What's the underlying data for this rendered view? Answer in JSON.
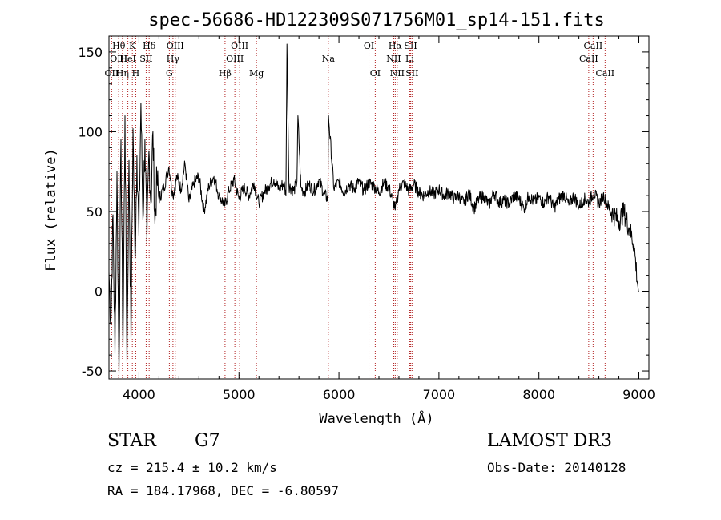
{
  "chart_data": {
    "type": "line",
    "title": "spec-56686-HD122309S071756M01_sp14-151.fits",
    "xlabel": "Wavelength (Å)",
    "ylabel": "Flux (relative)",
    "xlim": [
      3700,
      9100
    ],
    "ylim": [
      -55,
      160
    ],
    "xticks": [
      4000,
      5000,
      6000,
      7000,
      8000,
      9000
    ],
    "yticks": [
      -50,
      0,
      50,
      100,
      150
    ],
    "series": [
      {
        "name": "flux",
        "x": [
          3700,
          3720,
          3740,
          3760,
          3780,
          3800,
          3820,
          3840,
          3860,
          3880,
          3900,
          3920,
          3940,
          3960,
          3980,
          4000,
          4020,
          4040,
          4060,
          4080,
          4100,
          4120,
          4140,
          4160,
          4180,
          4200,
          4250,
          4300,
          4340,
          4380,
          4420,
          4460,
          4500,
          4550,
          4600,
          4650,
          4700,
          4750,
          4800,
          4861,
          4900,
          4950,
          5000,
          5050,
          5100,
          5150,
          5200,
          5250,
          5300,
          5350,
          5400,
          5450,
          5470,
          5480,
          5500,
          5550,
          5580,
          5590,
          5620,
          5650,
          5700,
          5750,
          5800,
          5850,
          5890,
          5896,
          5950,
          6000,
          6050,
          6100,
          6150,
          6200,
          6250,
          6300,
          6350,
          6400,
          6450,
          6500,
          6563,
          6600,
          6650,
          6700,
          6750,
          6800,
          6850,
          6900,
          6950,
          7000,
          7050,
          7100,
          7150,
          7200,
          7250,
          7300,
          7350,
          7400,
          7450,
          7500,
          7550,
          7600,
          7650,
          7700,
          7750,
          7800,
          7850,
          7900,
          7950,
          8000,
          8050,
          8100,
          8150,
          8200,
          8250,
          8300,
          8350,
          8400,
          8450,
          8500,
          8550,
          8600,
          8650,
          8700,
          8750,
          8800,
          8850,
          8900,
          8950,
          8990,
          9000
        ],
        "values": [
          12,
          -20,
          48,
          -40,
          75,
          -52,
          95,
          -35,
          110,
          -45,
          82,
          -30,
          102,
          20,
          85,
          35,
          118,
          45,
          95,
          30,
          88,
          55,
          100,
          42,
          70,
          58,
          65,
          78,
          60,
          72,
          64,
          80,
          56,
          68,
          72,
          50,
          66,
          72,
          60,
          54,
          63,
          70,
          58,
          65,
          60,
          68,
          55,
          62,
          66,
          70,
          64,
          68,
          60,
          155,
          66,
          63,
          69,
          110,
          65,
          62,
          67,
          63,
          70,
          61,
          58,
          110,
          64,
          69,
          62,
          67,
          64,
          69,
          63,
          68,
          66,
          62,
          68,
          65,
          51,
          64,
          68,
          63,
          67,
          62,
          60,
          63,
          61,
          64,
          60,
          62,
          58,
          60,
          55,
          62,
          52,
          58,
          60,
          54,
          62,
          56,
          57,
          55,
          60,
          58,
          52,
          60,
          56,
          59,
          55,
          60,
          52,
          58,
          61,
          54,
          60,
          53,
          58,
          56,
          62,
          55,
          60,
          52,
          48,
          44,
          50,
          40,
          30,
          3,
          0
        ]
      }
    ],
    "line_markers": [
      {
        "label": "OII",
        "x": 3727,
        "row": 3
      },
      {
        "label": "Hθ",
        "x": 3798,
        "row": 1
      },
      {
        "label": "OIII",
        "x": 3798,
        "row": 2
      },
      {
        "label": "Hη",
        "x": 3835,
        "row": 3
      },
      {
        "label": "HeI",
        "x": 3889,
        "row": 2
      },
      {
        "label": "K",
        "x": 3934,
        "row": 1
      },
      {
        "label": "H",
        "x": 3968,
        "row": 3
      },
      {
        "label": "SII",
        "x": 4072,
        "row": 2
      },
      {
        "label": "Hδ",
        "x": 4102,
        "row": 1
      },
      {
        "label": "OIII",
        "x": 4363,
        "row": 1
      },
      {
        "label": "Hγ",
        "x": 4340,
        "row": 2
      },
      {
        "label": "G",
        "x": 4304,
        "row": 3
      },
      {
        "label": "Hβ",
        "x": 4861,
        "row": 3
      },
      {
        "label": "OIII",
        "x": 5007,
        "row": 1
      },
      {
        "label": "OIII",
        "x": 4959,
        "row": 2
      },
      {
        "label": "Mg",
        "x": 5175,
        "row": 3
      },
      {
        "label": "Na",
        "x": 5894,
        "row": 2
      },
      {
        "label": "OI",
        "x": 6300,
        "row": 1
      },
      {
        "label": "OI",
        "x": 6363,
        "row": 3
      },
      {
        "label": "Hα",
        "x": 6563,
        "row": 1
      },
      {
        "label": "NII",
        "x": 6548,
        "row": 2
      },
      {
        "label": "NII",
        "x": 6583,
        "row": 3
      },
      {
        "label": "SII",
        "x": 6717,
        "row": 1
      },
      {
        "label": "Li",
        "x": 6708,
        "row": 2
      },
      {
        "label": "SII",
        "x": 6731,
        "row": 3
      },
      {
        "label": "CaII",
        "x": 8542,
        "row": 1
      },
      {
        "label": "CaII",
        "x": 8498,
        "row": 2
      },
      {
        "label": "CaII",
        "x": 8662,
        "row": 3
      }
    ]
  },
  "info": {
    "object_class": "STAR",
    "subclass": "G7",
    "survey": "LAMOST DR3",
    "cz": "cz = 215.4 ± 10.2 km/s",
    "obs_date": "Obs-Date: 20140128",
    "radec": "RA = 184.17968, DEC =  -6.80597"
  },
  "colors": {
    "line": "#000000",
    "marker": "#b22222",
    "axis": "#000000"
  }
}
